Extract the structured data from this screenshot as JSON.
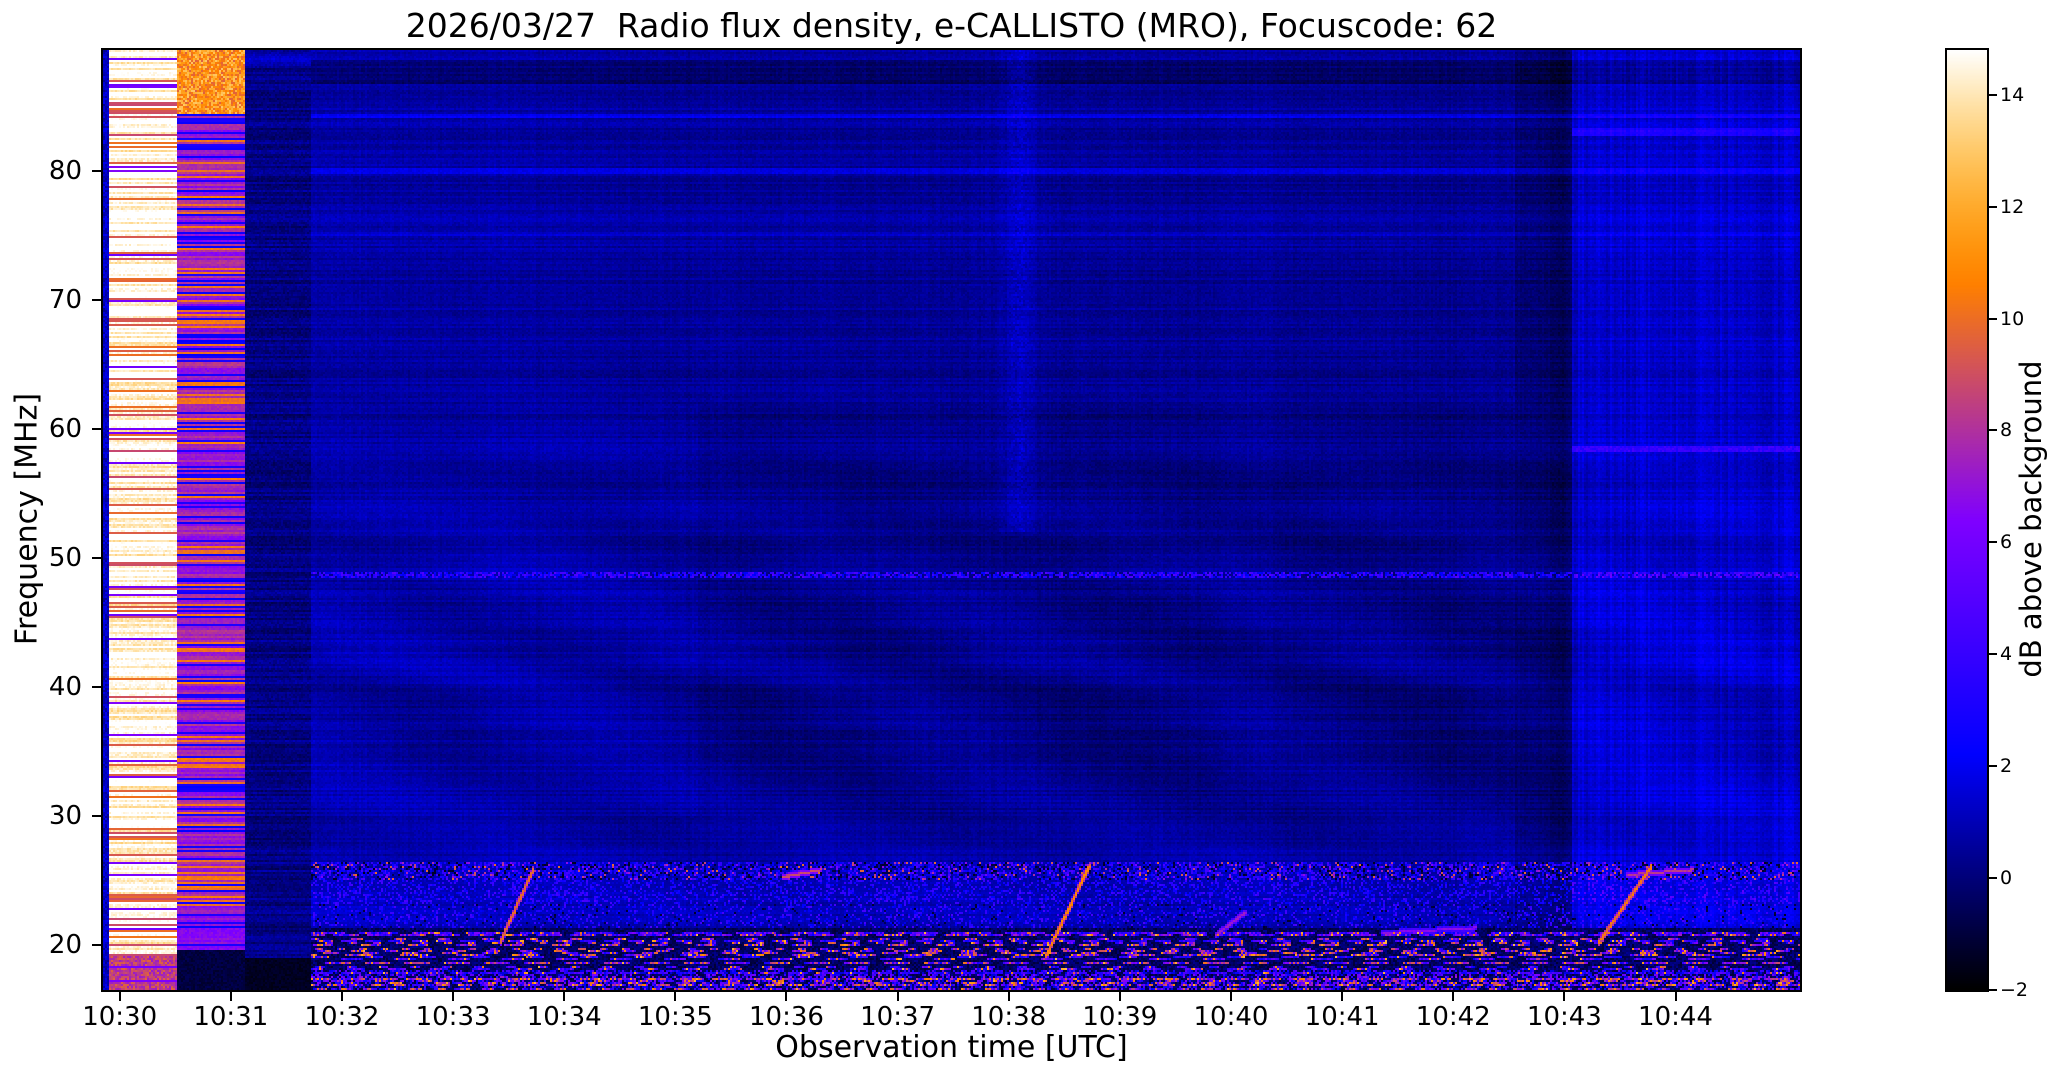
{
  "chart_data": {
    "type": "heatmap",
    "title": "2026/03/27  Radio flux density, e-CALLISTO (MRO), Focuscode: 62",
    "xlabel": "Observation time [UTC]",
    "ylabel": "Frequency [MHz]",
    "colorbar_label": "dB above background",
    "colormap": "gnuplot2-like black-blue-violet-pink-orange-white",
    "x_range_minutes_after_1030": [
      -0.15,
      15.12
    ],
    "x_ticks": [
      {
        "minute": 0,
        "label": "10:30"
      },
      {
        "minute": 1,
        "label": "10:31"
      },
      {
        "minute": 2,
        "label": "10:32"
      },
      {
        "minute": 3,
        "label": "10:33"
      },
      {
        "minute": 4,
        "label": "10:34"
      },
      {
        "minute": 5,
        "label": "10:35"
      },
      {
        "minute": 6,
        "label": "10:36"
      },
      {
        "minute": 7,
        "label": "10:37"
      },
      {
        "minute": 8,
        "label": "10:38"
      },
      {
        "minute": 9,
        "label": "10:39"
      },
      {
        "minute": 10,
        "label": "10:40"
      },
      {
        "minute": 11,
        "label": "10:41"
      },
      {
        "minute": 12,
        "label": "10:42"
      },
      {
        "minute": 13,
        "label": "10:43"
      },
      {
        "minute": 14,
        "label": "10:44"
      }
    ],
    "y_range_mhz": [
      16.5,
      89.4
    ],
    "y_ticks": [
      {
        "mhz": 20,
        "label": "20"
      },
      {
        "mhz": 30,
        "label": "30"
      },
      {
        "mhz": 40,
        "label": "40"
      },
      {
        "mhz": 50,
        "label": "50"
      },
      {
        "mhz": 60,
        "label": "60"
      },
      {
        "mhz": 70,
        "label": "70"
      },
      {
        "mhz": 80,
        "label": "80"
      }
    ],
    "value_range_db": [
      -2,
      14.8
    ],
    "colorbar_ticks": [
      {
        "value": 14,
        "label": "14"
      },
      {
        "value": 12,
        "label": "12"
      },
      {
        "value": 10,
        "label": "10"
      },
      {
        "value": 8,
        "label": "8"
      },
      {
        "value": 6,
        "label": "6"
      },
      {
        "value": 4,
        "label": "4"
      },
      {
        "value": 2,
        "label": "2"
      },
      {
        "value": 0,
        "label": "0"
      },
      {
        "value": -2,
        "label": "−2"
      }
    ],
    "features": {
      "background_db": 0.25,
      "calibration_band_bright": {
        "t0": -0.15,
        "t1": 0.52,
        "base_db": 12.8,
        "description": "saturated white/yellow startup band with orange-pink stripes"
      },
      "calibration_band_pink": {
        "t0": 0.52,
        "t1": 1.13,
        "base_db": 6.2,
        "description": "pink/magenta striped band, black below 19.6 MHz, orange above 84.5 MHz"
      },
      "quiet_dark_band": {
        "t0": 1.13,
        "t1": 1.72,
        "base_db": -0.8,
        "description": "near-black vertical band"
      },
      "bright_dashed_line_mhz": 48.7,
      "dark_band_top_mhz": [
        86.8,
        88.6
      ],
      "line_84_mhz": 84.3,
      "line_80_mhz": 80.0,
      "dark_column": {
        "t0": 12.55,
        "t1": 13.07,
        "description": "darker column just before 10:43"
      },
      "right_brighter_region": {
        "t0": 13.07,
        "boost_db": 0.85,
        "line_mhz": 58.5,
        "line2_mhz": 83.0,
        "description": "brighter blue region after 10:43"
      },
      "plume": {
        "t": 8.1,
        "f_above": 52,
        "description": "faint bright vertical plume near 10:38 at high frequencies"
      },
      "rfi_bands_mhz": [
        [
          17.2,
          21.3
        ],
        [
          21.3,
          23.2
        ],
        [
          23.2,
          25.0
        ],
        [
          25.0,
          26.4
        ]
      ],
      "streaks": [
        {
          "t0": 3.42,
          "f0": 20.3,
          "t1": 3.72,
          "f1": 26.0,
          "db": 8.5
        },
        {
          "t0": 5.95,
          "f0": 25.3,
          "t1": 6.3,
          "f1": 25.9,
          "db": 7.5
        },
        {
          "t0": 8.33,
          "f0": 19.2,
          "t1": 8.72,
          "f1": 26.2,
          "db": 9.5
        },
        {
          "t0": 9.85,
          "f0": 20.8,
          "t1": 10.12,
          "f1": 22.6,
          "db": 6.0
        },
        {
          "t0": 11.35,
          "f0": 21.0,
          "t1": 12.2,
          "f1": 21.4,
          "db": 5.5
        },
        {
          "t0": 13.3,
          "f0": 20.2,
          "t1": 13.78,
          "f1": 26.2,
          "db": 9.0
        },
        {
          "t0": 13.55,
          "f0": 25.5,
          "t1": 14.15,
          "f1": 25.9,
          "db": 7.0
        }
      ]
    }
  }
}
